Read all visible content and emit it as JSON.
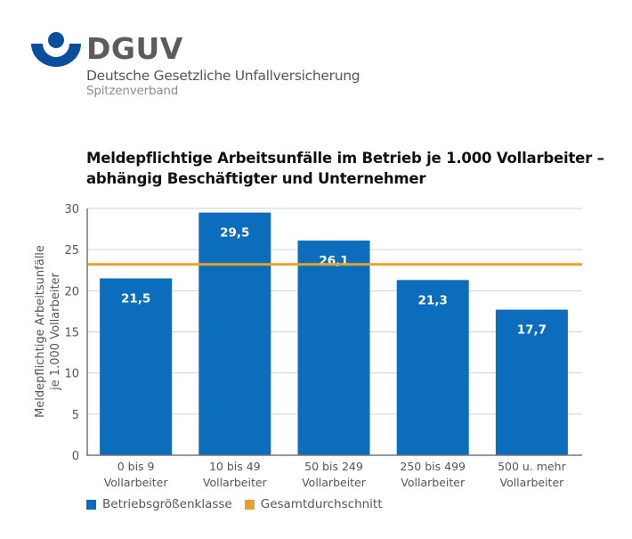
{
  "header": {
    "brand": "DGUV",
    "organization": "Deutsche Gesetzliche Unfallversicherung",
    "suborganization": "Spitzenverband",
    "logo_icon": "dguv-logo-icon",
    "brand_color": "#0a4f9c"
  },
  "colors": {
    "bar": "#0b6dbb",
    "average_line": "#e8a12b",
    "grid": "#d0d0d0",
    "axis": "#777777"
  },
  "chart_data": {
    "type": "bar",
    "title_lines": [
      "Meldepflichtige Arbeitsunfälle im Betrieb je 1.000 Vollarbeiter –",
      "abhängig Beschäftigter und Unternehmer"
    ],
    "ylabel_lines": [
      "Meldepflichtige Arbeitsunfälle",
      "je 1.000 Vollarbeiter"
    ],
    "xlabel": "",
    "categories": [
      [
        "0 bis 9",
        "Vollarbeiter"
      ],
      [
        "10 bis 49",
        "Vollarbeiter"
      ],
      [
        "50 bis 249",
        "Vollarbeiter"
      ],
      [
        "250 bis 499",
        "Vollarbeiter"
      ],
      [
        "500 u. mehr",
        "Vollarbeiter"
      ]
    ],
    "series": [
      {
        "name": "Betriebsgrößenklasse",
        "type": "bar",
        "values": [
          21.5,
          29.5,
          26.1,
          21.3,
          17.7
        ],
        "labels": [
          "21,5",
          "29,5",
          "26,1",
          "21,3",
          "17,7"
        ]
      },
      {
        "name": "Gesamtdurchschnitt",
        "type": "hline",
        "value": 23.2
      }
    ],
    "ylim": [
      0,
      30
    ],
    "yticks": [
      0,
      5,
      10,
      15,
      20,
      25,
      30
    ],
    "grid": true,
    "legend": {
      "placement": "bottom-left",
      "entries": [
        "Betriebsgrößenklasse",
        "Gesamtdurchschnitt"
      ]
    }
  }
}
